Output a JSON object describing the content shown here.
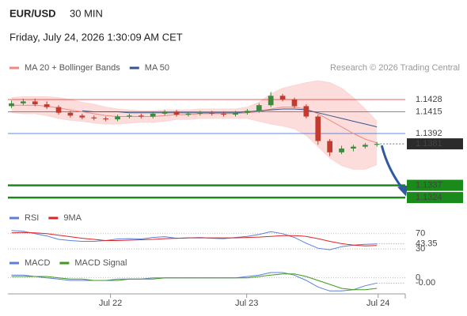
{
  "header": {
    "symbol": "EUR/USD",
    "timeframe": "30 MIN",
    "datetime": "Friday, July 24, 2026 1:30:09 AM CET",
    "credit": "Research © 2026 Trading Central"
  },
  "chart_data": [
    {
      "type": "candlestick",
      "x": [
        0,
        1,
        2,
        3,
        4,
        5,
        6,
        7,
        8,
        9,
        10,
        11,
        12,
        13,
        14,
        15,
        16,
        17,
        18,
        19,
        20,
        21,
        22,
        23,
        24,
        25,
        26,
        27,
        28,
        29,
        30,
        31
      ],
      "open": [
        1.1421,
        1.1424,
        1.1426,
        1.1423,
        1.142,
        1.1414,
        1.1411,
        1.1409,
        1.1408,
        1.1407,
        1.141,
        1.1411,
        1.141,
        1.1413,
        1.1415,
        1.1412,
        1.1413,
        1.1414,
        1.1413,
        1.1412,
        1.1414,
        1.1416,
        1.1422,
        1.1432,
        1.1428,
        1.1421,
        1.141,
        1.1384,
        1.1372,
        1.1376,
        1.1378,
        1.138
      ],
      "high": [
        1.1427,
        1.1429,
        1.1429,
        1.1426,
        1.1422,
        1.1416,
        1.1413,
        1.1411,
        1.141,
        1.1412,
        1.1413,
        1.1413,
        1.1415,
        1.1417,
        1.1417,
        1.1415,
        1.1416,
        1.1416,
        1.1415,
        1.1416,
        1.1418,
        1.1424,
        1.1436,
        1.1434,
        1.143,
        1.1423,
        1.1412,
        1.1386,
        1.1379,
        1.138,
        1.1382,
        1.1383
      ],
      "low": [
        1.1419,
        1.1422,
        1.1421,
        1.1418,
        1.1412,
        1.1409,
        1.1407,
        1.1406,
        1.1405,
        1.1405,
        1.1408,
        1.1408,
        1.1408,
        1.1411,
        1.141,
        1.141,
        1.1411,
        1.1411,
        1.141,
        1.141,
        1.1412,
        1.1414,
        1.142,
        1.1426,
        1.1419,
        1.1408,
        1.138,
        1.1368,
        1.137,
        1.1373,
        1.1376,
        1.1378
      ],
      "close": [
        1.1424,
        1.1426,
        1.1423,
        1.142,
        1.1414,
        1.1411,
        1.1409,
        1.1408,
        1.1407,
        1.141,
        1.1411,
        1.141,
        1.1413,
        1.1415,
        1.1412,
        1.1413,
        1.1414,
        1.1413,
        1.1412,
        1.1414,
        1.1416,
        1.1422,
        1.1432,
        1.1428,
        1.1421,
        1.141,
        1.1384,
        1.1372,
        1.1376,
        1.1378,
        1.138,
        1.1381
      ],
      "up_color": "#3c8a3c",
      "down_color": "#c43a2e",
      "bollinger_upper": [
        1.143,
        1.1431,
        1.1431,
        1.1431,
        1.143,
        1.1428,
        1.1425,
        1.1423,
        1.142,
        1.1418,
        1.1417,
        1.1416,
        1.1416,
        1.1417,
        1.1417,
        1.1417,
        1.1418,
        1.1418,
        1.1418,
        1.1418,
        1.142,
        1.1425,
        1.1434,
        1.144,
        1.1443,
        1.1446,
        1.1448,
        1.1446,
        1.144,
        1.143,
        1.1418,
        1.1405
      ],
      "bollinger_lower": [
        1.1414,
        1.1413,
        1.1413,
        1.1411,
        1.1408,
        1.1406,
        1.1405,
        1.1403,
        1.1402,
        1.1402,
        1.1403,
        1.1404,
        1.1404,
        1.1405,
        1.1407,
        1.1407,
        1.1408,
        1.1408,
        1.1408,
        1.1408,
        1.1408,
        1.1405,
        1.1402,
        1.14,
        1.1397,
        1.139,
        1.1378,
        1.1366,
        1.1358,
        1.1354,
        1.1354,
        1.1359
      ],
      "band_color": "#fbd5d2",
      "series": [
        {
          "name": "MA 20 + Bollinger Bands",
          "color": "#f08a80",
          "values": [
            1.1422,
            1.1422,
            1.1422,
            1.1421,
            1.1419,
            1.1417,
            1.1415,
            1.1413,
            1.1411,
            1.141,
            1.141,
            1.141,
            1.141,
            1.1411,
            1.1412,
            1.1412,
            1.1413,
            1.1413,
            1.1413,
            1.1413,
            1.1414,
            1.1415,
            1.1418,
            1.142,
            1.142,
            1.1418,
            1.1413,
            1.1406,
            1.1399,
            1.1392,
            1.1386,
            1.1382
          ]
        },
        {
          "name": "MA 50",
          "color": "#34568b",
          "values": [
            null,
            null,
            null,
            null,
            null,
            null,
            1.1416,
            1.1415,
            1.1415,
            1.1415,
            1.1414,
            1.1414,
            1.1414,
            1.1414,
            1.1414,
            1.1414,
            1.1414,
            1.1414,
            1.1414,
            1.1414,
            1.1415,
            1.1416,
            1.1417,
            1.1418,
            1.1418,
            1.1417,
            1.1414,
            1.1411,
            1.1408,
            1.1405,
            1.1402,
            1.1399
          ]
        }
      ],
      "levels": [
        {
          "value": 1.1428,
          "color": "#e03a3a",
          "style": "line"
        },
        {
          "value": 1.1415,
          "color": "#e03a3a",
          "style": "line"
        },
        {
          "value": 1.1392,
          "color": "#3a6fd8",
          "style": "line"
        },
        {
          "value": 1.1381,
          "color": "#2b2b2b",
          "style": "current"
        },
        {
          "value": 1.1337,
          "color": "#1a8a1a",
          "style": "box"
        },
        {
          "value": 1.1324,
          "color": "#1a8a1a",
          "style": "box"
        }
      ],
      "ylim": [
        1.1314,
        1.1452
      ],
      "xlim": [
        -0.3,
        33.4
      ],
      "xticks": [
        {
          "value": 8.4,
          "label": "Jul 22"
        },
        {
          "value": 19.95,
          "label": "Jul 23"
        },
        {
          "value": 31.1,
          "label": "Jul 24"
        }
      ]
    },
    {
      "type": "line",
      "series": [
        {
          "name": "RSI",
          "color": "#5b7fd8",
          "values": [
            78,
            76,
            70,
            64,
            55,
            52,
            50,
            50,
            52,
            56,
            57,
            56,
            60,
            62,
            58,
            59,
            60,
            58,
            57,
            60,
            63,
            68,
            75,
            70,
            60,
            45,
            32,
            28,
            36,
            40,
            42,
            43.35
          ]
        },
        {
          "name": "9MA",
          "color": "#e02424",
          "values": [
            72,
            73,
            72,
            70,
            66,
            62,
            58,
            55,
            52,
            52,
            53,
            54,
            55,
            57,
            58,
            59,
            59,
            59,
            59,
            59,
            60,
            61,
            63,
            65,
            65,
            63,
            57,
            50,
            44,
            40,
            38,
            39
          ]
        }
      ],
      "ylim": [
        20,
        86
      ],
      "yticks": [
        70,
        30
      ],
      "current": 43.35,
      "current_color": "#5b7fd8"
    },
    {
      "type": "line",
      "series": [
        {
          "name": "MACD",
          "color": "#5b7fd8",
          "values": [
            0.0002,
            0.0002,
            0.0001,
            0,
            -0.0001,
            -0.0002,
            -0.0002,
            -0.0002,
            -0.0002,
            -0.0001,
            -0.0001,
            -0.0001,
            0,
            0,
            0,
            0,
            0,
            0,
            0,
            0,
            0.0001,
            0.0002,
            0.0004,
            0.0004,
            0.0002,
            -0.0002,
            -0.0007,
            -0.001,
            -0.001,
            -0.0009,
            -0.0006,
            -0.0004
          ]
        },
        {
          "name": "MACD Signal",
          "color": "#3f9a1e",
          "values": [
            0.0001,
            0.0001,
            0.0001,
            0.0001,
            0,
            -0.0001,
            -0.0001,
            -0.0002,
            -0.0002,
            -0.0002,
            -0.0001,
            -0.0001,
            -0.0001,
            0,
            0,
            0,
            0,
            0,
            0,
            0,
            0,
            0.0001,
            0.0002,
            0.0003,
            0.0003,
            0.0001,
            -0.0002,
            -0.0005,
            -0.0008,
            -0.0009,
            -0.0009,
            -0.0008
          ]
        }
      ],
      "ylim": [
        -0.0011,
        0.0007
      ],
      "yticks": [
        0
      ],
      "current": {
        "value": -0.0004,
        "label": "-0.00"
      },
      "current_color": "#5b7fd8"
    }
  ]
}
